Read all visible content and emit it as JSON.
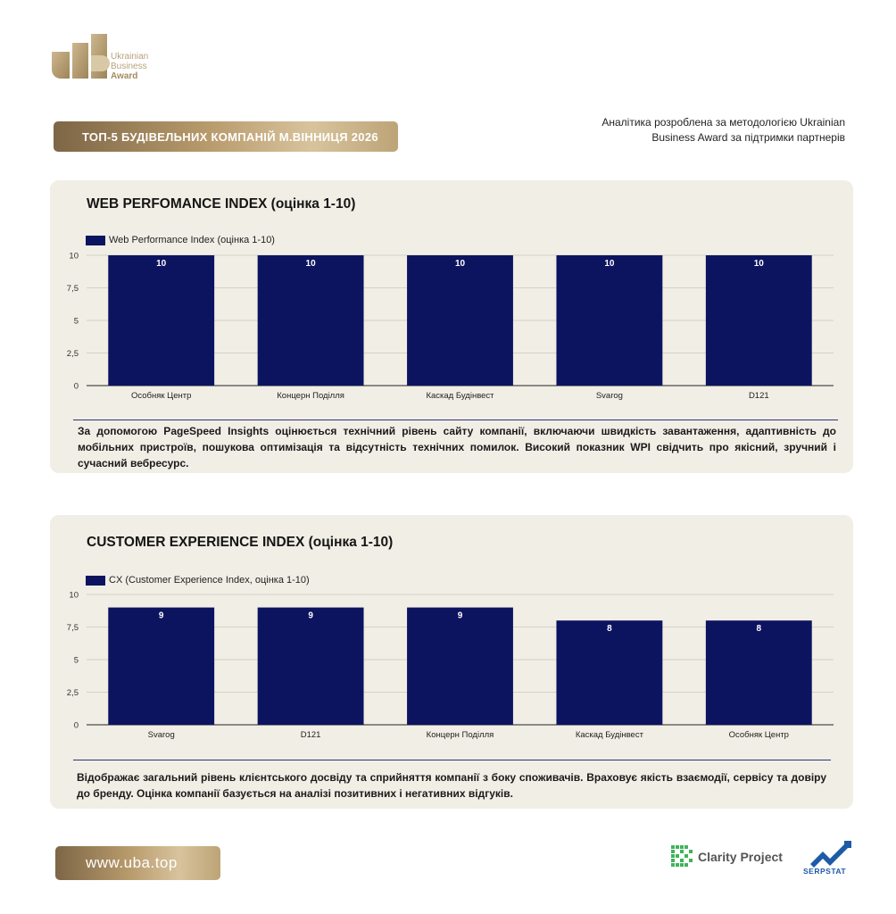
{
  "brand": {
    "logo_line1": "Ukrainian",
    "logo_line2": "Business",
    "logo_line3": "Award",
    "gold_color": "#b89b6c"
  },
  "header": {
    "title": "ТОП-5 БУДІВЕЛЬНИХ КОМПАНІЙ М.ВІННИЦЯ 2026",
    "methodology": "Аналітика розроблена за методологією Ukrainian Business Award за підтримки партнерів"
  },
  "footer": {
    "url": "www.uba.top",
    "partner1": "Clarity Project",
    "partner2": "SERPSTAT",
    "partner1_icon": "clarity-project-logo",
    "partner2_icon": "serpstat-logo"
  },
  "chart_data": [
    {
      "type": "bar",
      "title": "WEB PERFOMANCE INDEX (оцінка 1-10)",
      "categories": [
        "Особняк Центр",
        "Концерн Поділля",
        "Каскад Будінвест",
        "Svarog",
        "D121"
      ],
      "series": [
        {
          "name": "Web Performance Index (оцінка 1-10)",
          "values": [
            10,
            10,
            10,
            10,
            10
          ],
          "color": "#0c1460"
        }
      ],
      "ylim": [
        0,
        10
      ],
      "yticks": [
        "0",
        "2,5",
        "5",
        "7,5",
        "10"
      ],
      "grid": true,
      "legend": "top-left",
      "description": "За допомогою PageSpeed Insights оцінюється технічний рівень сайту компанії, включаючи швидкість завантаження, адаптивність до мобільних пристроїв, пошукова оптимізація та відсутність технічних помилок. Високий показник WPI свідчить про якісний, зручний і сучасний вебресурс."
    },
    {
      "type": "bar",
      "title": "CUSTOMER EXPERIENCE INDEX (оцінка 1-10)",
      "categories": [
        "Svarog",
        "D121",
        "Концерн Поділля",
        "Каскад Будінвест",
        "Особняк Центр"
      ],
      "series": [
        {
          "name": "CX (Customer Experience Index, оцінка 1-10)",
          "values": [
            9,
            9,
            9,
            8,
            8
          ],
          "color": "#0c1460"
        }
      ],
      "ylim": [
        0,
        10
      ],
      "yticks": [
        "0",
        "2,5",
        "5",
        "7,5",
        "10"
      ],
      "grid": true,
      "legend": "top-left",
      "description": "Відображає загальний рівень клієнтського досвіду та сприйняття компанії з боку споживачів. Враховує якість взаємодії, сервісу та довіру до бренду. Оцінка компанії базується на аналізі позитивних і негативних відгуків."
    }
  ]
}
